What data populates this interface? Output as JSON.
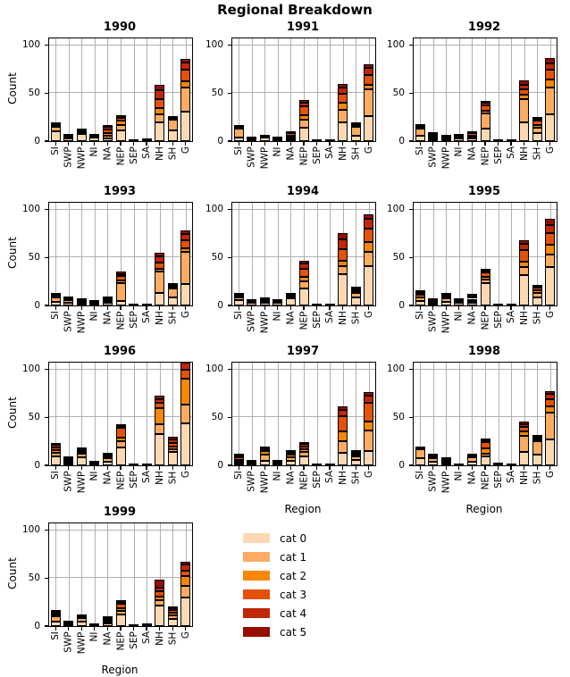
{
  "chart_data": {
    "type": "bar",
    "stacked": true,
    "title": "Regional Breakdown",
    "xlabel": "Region",
    "ylabel": "Count",
    "categories": [
      "SI",
      "SWP",
      "NWP",
      "NI",
      "NA",
      "NEP",
      "SEP",
      "SA",
      "NH",
      "SH",
      "G"
    ],
    "yticks": [
      0,
      50,
      100
    ],
    "ylim": [
      0,
      107
    ],
    "grid": true,
    "legend": {
      "position": "bottom-center",
      "entries": [
        {
          "label": "cat 0",
          "color": "#fdd8b2"
        },
        {
          "label": "cat 1",
          "color": "#fdab63"
        },
        {
          "label": "cat 2",
          "color": "#f98703"
        },
        {
          "label": "cat 3",
          "color": "#e35207"
        },
        {
          "label": "cat 4",
          "color": "#c02702"
        },
        {
          "label": "cat 5",
          "color": "#970c01"
        }
      ]
    },
    "years": [
      {
        "year": "1990",
        "stacks": [
          [
            10,
            5,
            1,
            1,
            0.5,
            0.5
          ],
          [
            3,
            1.5,
            0.5,
            0.5,
            0.5,
            0
          ],
          [
            7,
            2,
            1,
            1,
            0.5,
            0.5
          ],
          [
            3.5,
            1.5,
            1,
            1,
            0,
            0
          ],
          [
            3,
            3,
            2,
            4,
            3,
            2
          ],
          [
            11,
            6,
            4,
            3,
            1,
            1
          ],
          [
            0.5,
            0,
            0,
            0,
            0,
            0
          ],
          [
            1,
            0.5,
            0,
            0,
            0,
            0
          ],
          [
            20,
            8,
            6,
            10,
            9,
            6
          ],
          [
            11,
            11,
            1,
            1,
            0.5,
            0.5
          ],
          [
            31,
            25,
            6,
            12,
            8,
            4
          ]
        ]
      },
      {
        "year": "1991",
        "stacks": [
          [
            4,
            9,
            0.5,
            0.5,
            0.5,
            0.5
          ],
          [
            1.5,
            1,
            0.5,
            0.5,
            0,
            0
          ],
          [
            3.5,
            0.5,
            0.5,
            0.5,
            0,
            0
          ],
          [
            1.5,
            1,
            0.5,
            0.5,
            0,
            0
          ],
          [
            2,
            2,
            2,
            2,
            0.5,
            0.5
          ],
          [
            14,
            8,
            5,
            9,
            4,
            3
          ],
          [
            0.5,
            0,
            0,
            0,
            0,
            0
          ],
          [
            0.5,
            0,
            0,
            0,
            0,
            0
          ],
          [
            20,
            13,
            7,
            9,
            7,
            4
          ],
          [
            6,
            9,
            1,
            1,
            1,
            1
          ],
          [
            26,
            28,
            5,
            10,
            7,
            4
          ]
        ]
      },
      {
        "year": "1992",
        "stacks": [
          [
            6,
            7,
            1,
            1,
            0.5,
            0.5
          ],
          [
            2,
            2,
            2,
            1,
            0.5,
            0.5
          ],
          [
            2,
            1,
            1,
            0.5,
            0.5,
            0
          ],
          [
            3,
            2,
            1,
            1,
            0,
            0
          ],
          [
            3,
            2,
            1,
            2,
            0.5,
            0.5
          ],
          [
            13,
            16,
            3,
            5,
            3,
            2
          ],
          [
            0.5,
            0,
            0,
            0,
            0,
            0
          ],
          [
            0.5,
            0,
            0,
            0,
            0,
            0
          ],
          [
            20,
            24,
            4,
            6,
            5,
            4
          ],
          [
            8,
            6,
            3,
            4,
            2,
            1
          ],
          [
            28,
            28,
            8,
            10,
            7,
            6
          ]
        ]
      },
      {
        "year": "1993",
        "stacks": [
          [
            4,
            4,
            1.5,
            1.5,
            0.5,
            0.5
          ],
          [
            3,
            3,
            1,
            1,
            0,
            0
          ],
          [
            2,
            1,
            1,
            1,
            0.5,
            0.5
          ],
          [
            2,
            1,
            1,
            1,
            0,
            0
          ],
          [
            3,
            2,
            1,
            1,
            0.5,
            0.5
          ],
          [
            5,
            18,
            3,
            5,
            2,
            2
          ],
          [
            1,
            0,
            0,
            0,
            0,
            0
          ],
          [
            0.5,
            0,
            0,
            0,
            0,
            0
          ],
          [
            13,
            22,
            3,
            7,
            6,
            4
          ],
          [
            8,
            10,
            1,
            1,
            1,
            1
          ],
          [
            22,
            34,
            4,
            8,
            6,
            4
          ]
        ]
      },
      {
        "year": "1994",
        "stacks": [
          [
            6,
            2,
            2,
            1,
            0.5,
            0.5
          ],
          [
            3,
            1,
            1,
            1,
            0,
            0
          ],
          [
            3,
            1,
            1,
            1,
            0.5,
            0.5
          ],
          [
            3,
            1,
            1,
            1,
            0,
            0
          ],
          [
            7,
            2,
            1,
            1,
            0.5,
            0.5
          ],
          [
            18,
            7,
            5,
            8,
            6,
            3
          ],
          [
            0.5,
            0,
            0,
            0,
            0,
            0
          ],
          [
            1,
            0,
            0,
            0,
            0,
            0
          ],
          [
            33,
            8,
            6,
            12,
            10,
            6
          ],
          [
            8,
            5,
            2,
            2,
            1,
            1
          ],
          [
            41,
            15,
            10,
            14,
            10,
            5
          ]
        ]
      },
      {
        "year": "1995",
        "stacks": [
          [
            5,
            3,
            3,
            2,
            1,
            1
          ],
          [
            2,
            1,
            1,
            1,
            0.5,
            0.5
          ],
          [
            4,
            3,
            2,
            2,
            0.5,
            0.5
          ],
          [
            3,
            2,
            1,
            1,
            0,
            0
          ],
          [
            3,
            2,
            2,
            2,
            1,
            1
          ],
          [
            23,
            4,
            3,
            4,
            2,
            2
          ],
          [
            0.5,
            0,
            0,
            0,
            0,
            0
          ],
          [
            1,
            0,
            0,
            0,
            0,
            0
          ],
          [
            32,
            8,
            6,
            12,
            6,
            4
          ],
          [
            8,
            5,
            3,
            3,
            1,
            1
          ],
          [
            40,
            13,
            10,
            12,
            9,
            6
          ]
        ]
      },
      {
        "year": "1996",
        "stacks": [
          [
            9,
            4,
            3,
            3,
            2,
            1
          ],
          [
            2,
            2,
            1,
            1,
            1.5,
            1.5
          ],
          [
            8,
            4,
            2,
            2,
            1,
            1
          ],
          [
            1,
            1,
            0.5,
            0.5,
            0,
            0
          ],
          [
            4,
            3,
            2,
            2,
            0.5,
            0.5
          ],
          [
            19,
            6,
            4,
            10,
            2,
            2
          ],
          [
            1,
            0,
            0,
            0,
            0,
            0
          ],
          [
            0.5,
            0,
            0,
            0,
            0,
            0
          ],
          [
            33,
            10,
            17,
            5,
            4,
            4
          ],
          [
            14,
            3,
            3,
            3,
            4,
            3
          ],
          [
            44,
            19,
            27,
            10,
            7,
            6
          ]
        ]
      },
      {
        "year": "1997",
        "stacks": [
          [
            2,
            2,
            2,
            2,
            2,
            1
          ],
          [
            2,
            1,
            0.5,
            0.5,
            0,
            0
          ],
          [
            5,
            6,
            4,
            2,
            1,
            1
          ],
          [
            2,
            1,
            1,
            1,
            0,
            0
          ],
          [
            5,
            3,
            3,
            2,
            1,
            1
          ],
          [
            9,
            5,
            3,
            3,
            2,
            1
          ],
          [
            0.5,
            0,
            0,
            0,
            0,
            0
          ],
          [
            0.5,
            0,
            0,
            0,
            0,
            0
          ],
          [
            13,
            12,
            10,
            16,
            7,
            3
          ],
          [
            6,
            3,
            2,
            2,
            1,
            1
          ],
          [
            15,
            21,
            10,
            19,
            8,
            3
          ]
        ]
      },
      {
        "year": "1998",
        "stacks": [
          [
            7,
            10,
            0.5,
            0.5,
            0,
            0
          ],
          [
            4,
            3,
            2,
            1,
            0.5,
            0.5
          ],
          [
            2,
            2,
            1,
            1,
            0.5,
            0.5
          ],
          [
            1,
            0,
            0,
            0,
            0,
            0
          ],
          [
            4,
            4,
            1,
            1,
            0.5,
            0.5
          ],
          [
            9,
            3,
            6,
            6,
            2,
            2
          ],
          [
            1,
            1,
            0,
            0,
            0,
            0
          ],
          [
            0.5,
            0,
            0,
            0,
            0,
            0
          ],
          [
            14,
            17,
            4,
            5,
            3,
            3
          ],
          [
            11,
            14,
            2,
            2,
            1,
            1
          ],
          [
            27,
            28,
            6,
            8,
            5,
            3
          ]
        ]
      },
      {
        "year": "1999",
        "stacks": [
          [
            5,
            5,
            2,
            2,
            1,
            1
          ],
          [
            2,
            1,
            0.5,
            0.5,
            0,
            0
          ],
          [
            5,
            3,
            1,
            1,
            0.5,
            0.5
          ],
          [
            1,
            1,
            0,
            0,
            0,
            0
          ],
          [
            3,
            2,
            1,
            1,
            1,
            1
          ],
          [
            12,
            4,
            3,
            4,
            2,
            1
          ],
          [
            0.5,
            0,
            0,
            0,
            0,
            0
          ],
          [
            1,
            0.5,
            0,
            0,
            0,
            0
          ],
          [
            21,
            6,
            4,
            5,
            4,
            8
          ],
          [
            7,
            4,
            3,
            3,
            2,
            1
          ],
          [
            30,
            12,
            10,
            6,
            6,
            3
          ]
        ]
      }
    ]
  }
}
